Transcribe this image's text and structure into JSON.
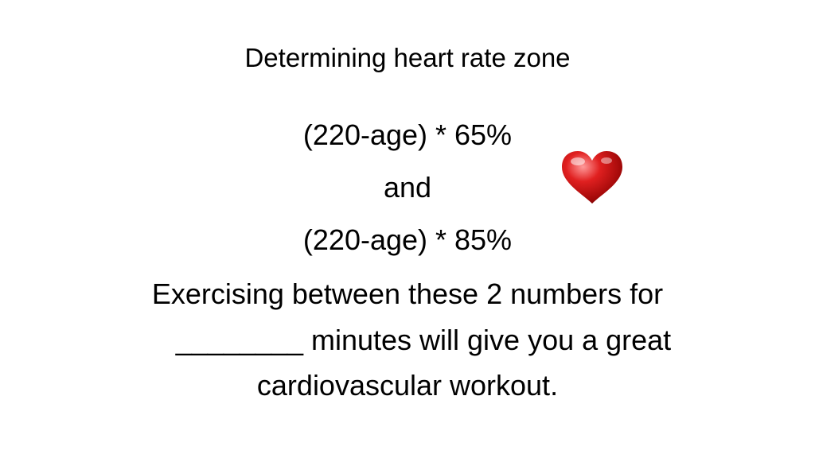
{
  "slide": {
    "title": "Determining heart rate zone",
    "lines": [
      "(220-age) * 65%",
      "and",
      "(220-age) * 85%"
    ],
    "paragraph": [
      "Exercising between these 2 numbers for",
      "________ minutes will give you a great",
      "cardiovascular workout."
    ]
  }
}
